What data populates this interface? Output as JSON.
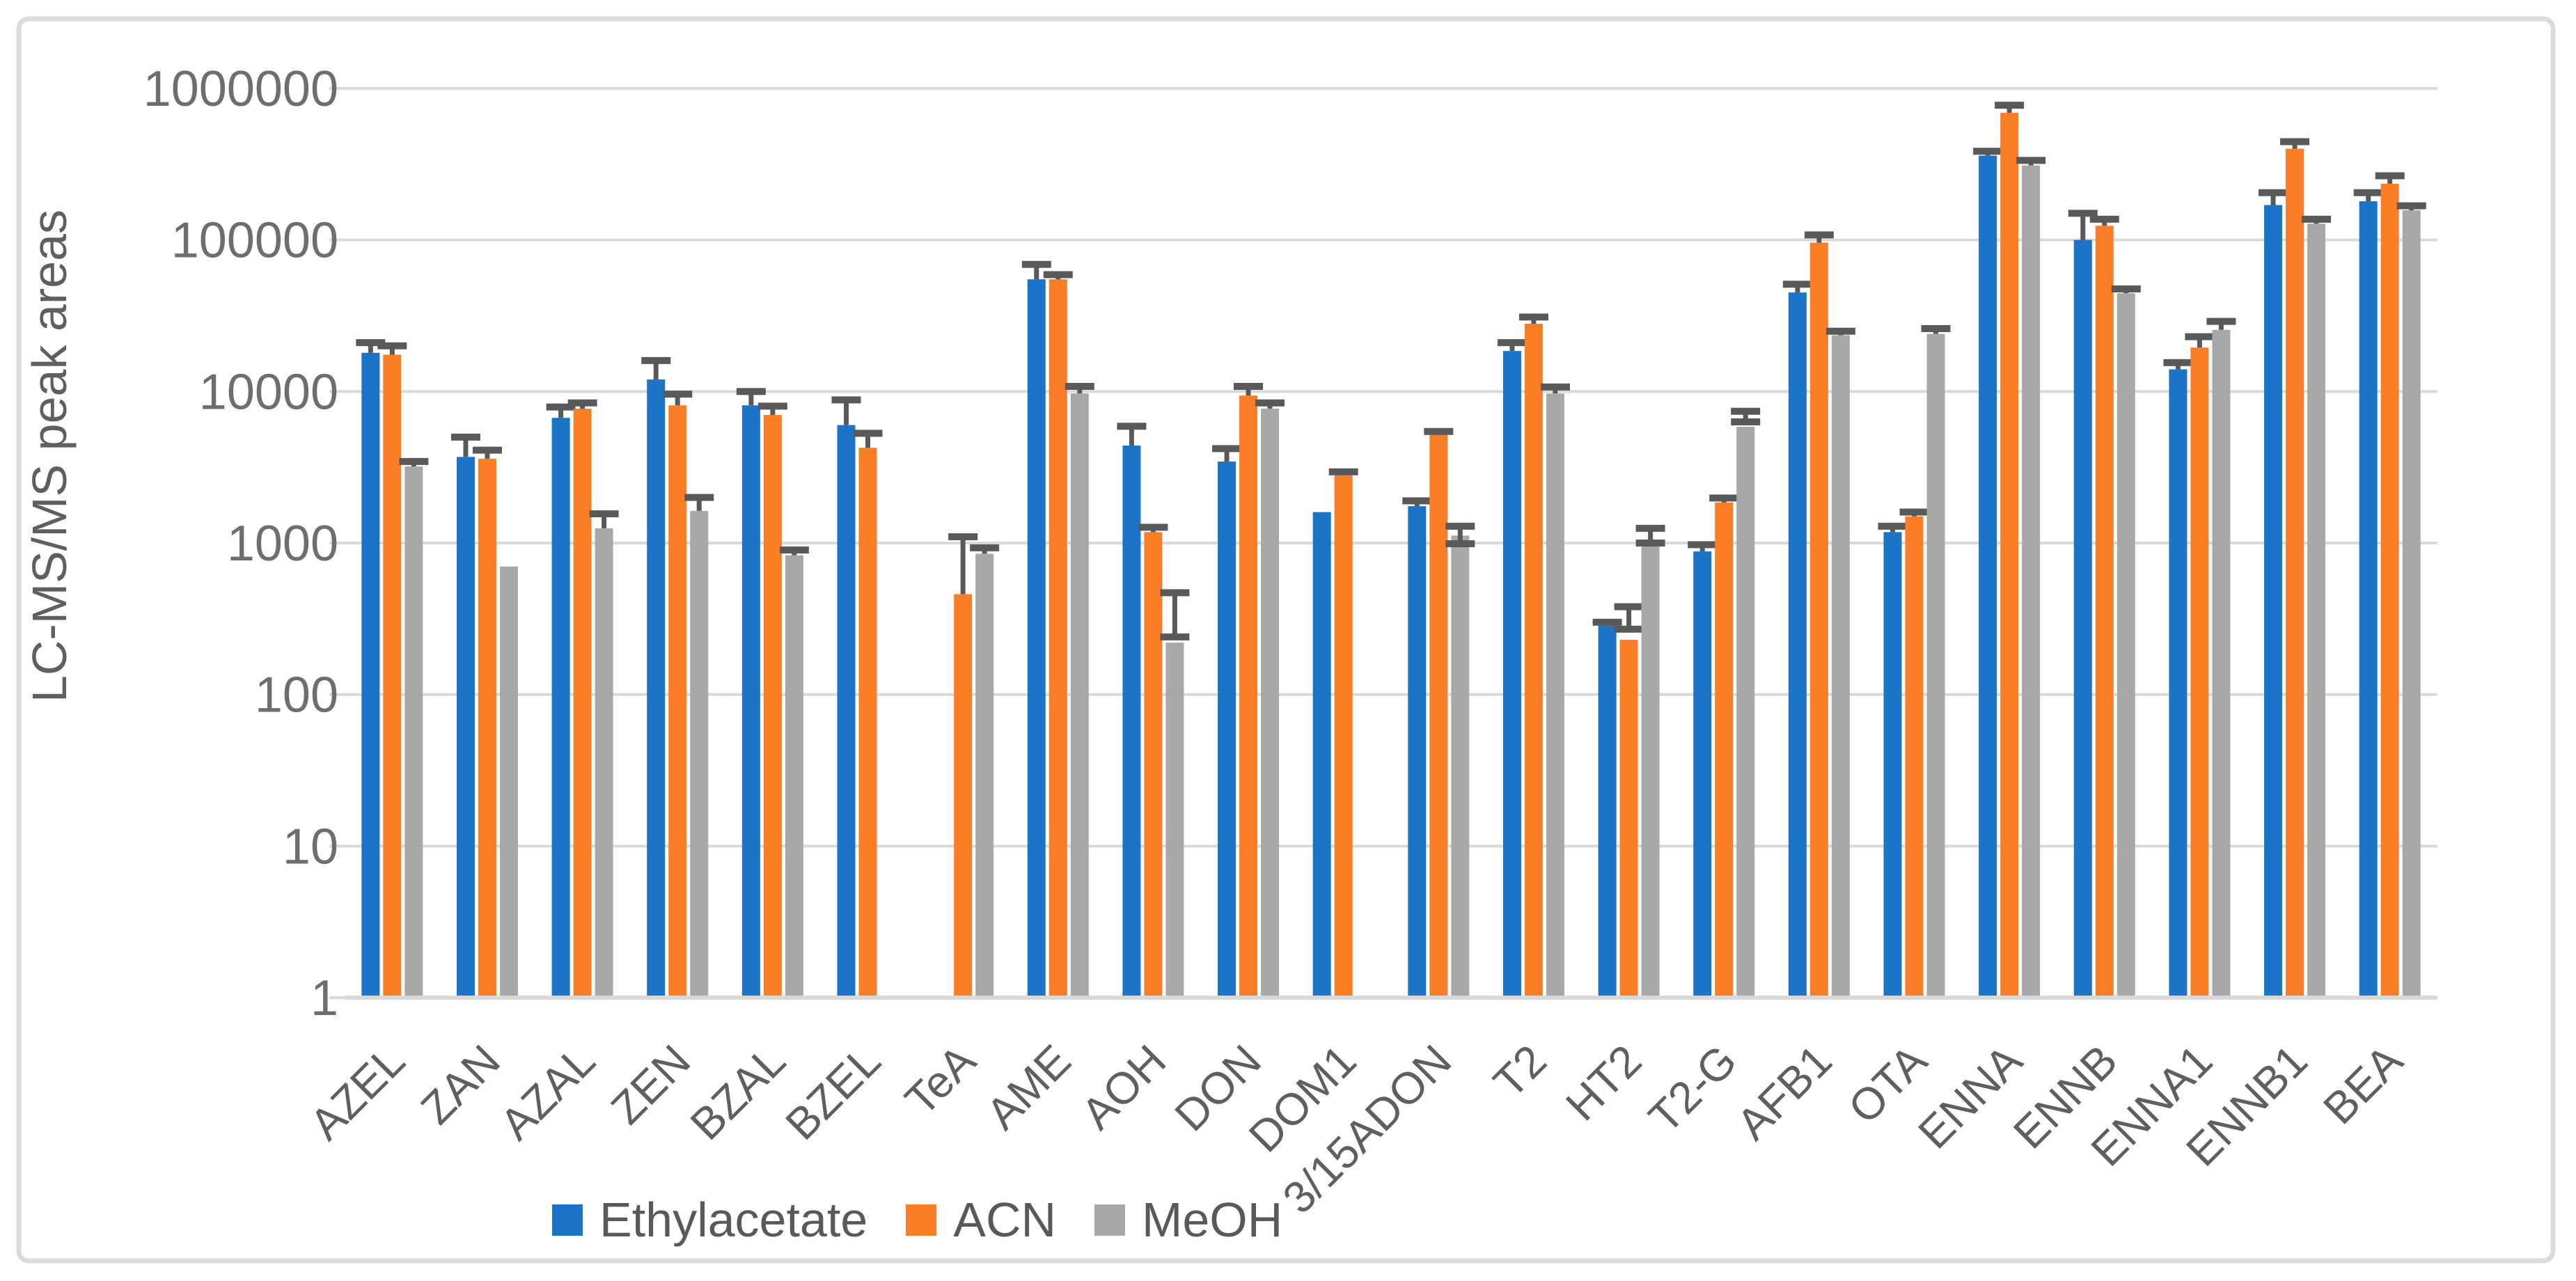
{
  "figure": {
    "background_color": "#ffffff",
    "border_color": "#dbdbdb"
  },
  "y_axis": {
    "title": "LC-MS/MS peak areas",
    "ticks": [
      "1",
      "10",
      "100",
      "1000",
      "10000",
      "100000",
      "1000000"
    ]
  },
  "legend": [
    {
      "label": "Ethylacetate",
      "color": "#1b74c8"
    },
    {
      "label": "ACN",
      "color": "#fb7e27"
    },
    {
      "label": "MeOH",
      "color": "#a8a8a8"
    }
  ],
  "chart_data": {
    "type": "bar",
    "scale": "log",
    "title": "",
    "xlabel": "",
    "ylabel": "LC-MS/MS peak areas",
    "ylim": [
      1,
      1000000
    ],
    "grid": true,
    "legend_position": "bottom",
    "gridline_color": "#d9d9d9",
    "error_color": "#595959",
    "text_color": "#6e6e6e",
    "categories": [
      "AZEL",
      "ZAN",
      "AZAL",
      "ZEN",
      "BZAL",
      "BZEL",
      "TeA",
      "AME",
      "AOH",
      "DON",
      "DOM1",
      "3/15ADON",
      "T2",
      "HT2",
      "T2-G",
      "AFB1",
      "OTA",
      "ENNA",
      "ENNB",
      "ENNA1",
      "ENNB1",
      "BEA"
    ],
    "series": [
      {
        "name": "Ethylacetate",
        "color": "#1b74c8",
        "values": [
          18000,
          3700,
          6700,
          12000,
          8100,
          6000,
          null,
          55000,
          4400,
          3450,
          1600,
          1750,
          18500,
          285,
          880,
          45000,
          1180,
          360000,
          100000,
          14000,
          170000,
          180000
        ],
        "err_top": [
          21000,
          5000,
          7900,
          16000,
          10000,
          8800,
          null,
          69000,
          5900,
          4200,
          null,
          1900,
          21000,
          300,
          975,
          51000,
          1290,
          385000,
          150000,
          15500,
          205000,
          205000
        ],
        "err_low": [
          null,
          null,
          null,
          null,
          null,
          null,
          null,
          null,
          null,
          null,
          null,
          null,
          null,
          null,
          null,
          null,
          null,
          null,
          null,
          null,
          null,
          null
        ]
      },
      {
        "name": "ACN",
        "color": "#fb7e27",
        "values": [
          17500,
          3600,
          7700,
          8100,
          7000,
          4250,
          460,
          55000,
          1180,
          9400,
          2800,
          5200,
          28000,
          230,
          1850,
          96000,
          1500,
          690000,
          124000,
          19500,
          400000,
          235000
        ],
        "err_top": [
          20000,
          4100,
          8400,
          9600,
          8000,
          5300,
          1100,
          59000,
          1270,
          10800,
          2950,
          5450,
          31000,
          380,
          1980,
          108000,
          1600,
          775000,
          137000,
          23000,
          445000,
          265000
        ],
        "err_low": [
          null,
          null,
          null,
          null,
          null,
          null,
          null,
          null,
          null,
          null,
          null,
          null,
          null,
          270,
          null,
          null,
          null,
          null,
          null,
          null,
          null,
          null
        ]
      },
      {
        "name": "MeOH",
        "color": "#a8a8a8",
        "values": [
          3200,
          700,
          1250,
          1630,
          830,
          null,
          850,
          9700,
          220,
          7700,
          null,
          1120,
          9700,
          1040,
          5850,
          23500,
          24000,
          310000,
          44500,
          25500,
          128000,
          157000
        ],
        "err_top": [
          3450,
          null,
          1560,
          2000,
          900,
          null,
          930,
          10800,
          470,
          8400,
          null,
          1290,
          10700,
          1250,
          7400,
          25000,
          26000,
          335000,
          47500,
          29000,
          137000,
          168000
        ],
        "err_low": [
          null,
          null,
          null,
          null,
          null,
          null,
          null,
          null,
          240,
          null,
          null,
          990,
          null,
          1000,
          6300,
          null,
          null,
          null,
          null,
          null,
          null,
          null
        ]
      }
    ]
  }
}
